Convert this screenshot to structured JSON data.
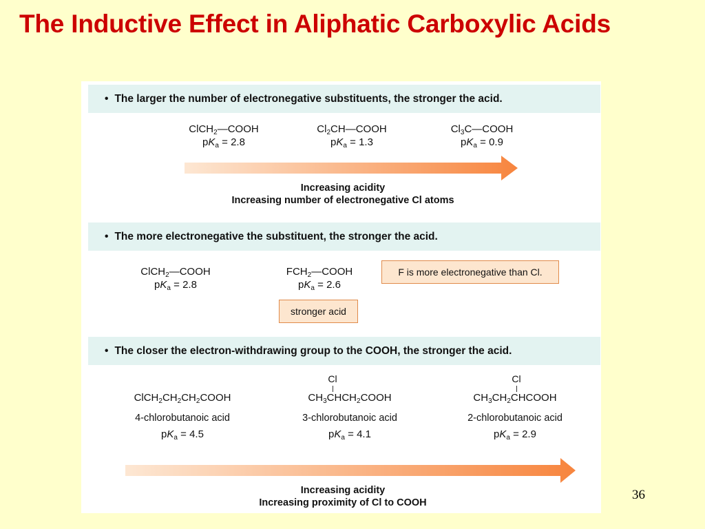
{
  "title": "The Inductive Effect in Aliphatic Carboxylic Acids",
  "slide_number": "36",
  "section1": {
    "statement": "The larger the number of electronegative substituents, the stronger the acid.",
    "compounds": [
      {
        "formula_a": "ClCH",
        "sub": "2",
        "formula_b": "—COOH",
        "pka_value": "2.8"
      },
      {
        "formula_a": "Cl",
        "sub": "2",
        "formula_b": "CH—COOH",
        "pka_value": "1.3"
      },
      {
        "formula_a": "Cl",
        "sub": "3",
        "formula_b": "C—COOH",
        "pka_value": "0.9"
      }
    ],
    "caption_line1": "Increasing acidity",
    "caption_line2": "Increasing number of electronegative Cl atoms"
  },
  "section2": {
    "statement": "The more electronegative the substituent, the stronger the acid.",
    "compounds": [
      {
        "formula_a": "ClCH",
        "sub": "2",
        "formula_b": "—COOH",
        "pka_value": "2.8"
      },
      {
        "formula_a": "FCH",
        "sub": "2",
        "formula_b": "—COOH",
        "pka_value": "2.6"
      }
    ],
    "note": "F is more electronegative than Cl.",
    "label": "stronger acid"
  },
  "section3": {
    "statement": "The closer the electron-withdrawing group to the COOH, the stronger the acid.",
    "compounds": [
      {
        "substituent": "",
        "name": "4-chlorobutanoic acid",
        "pka_value": "4.5"
      },
      {
        "substituent": "Cl",
        "name": "3-chlorobutanoic acid",
        "pka_value": "4.1"
      },
      {
        "substituent": "Cl",
        "name": "2-chlorobutanoic acid",
        "pka_value": "2.9"
      }
    ],
    "caption_line1": "Increasing acidity",
    "caption_line2": "Increasing proximity of Cl to COOH"
  },
  "pka_prefix": "p",
  "pka_K": "K",
  "pka_a": "a",
  "pka_eq": " = ",
  "bullet": "•",
  "colors": {
    "title": "#cc0000",
    "band": "#e3f3f1",
    "arrow_end": "#f7853e",
    "box_fill": "#fde6cf",
    "box_border": "#e08a4a"
  }
}
